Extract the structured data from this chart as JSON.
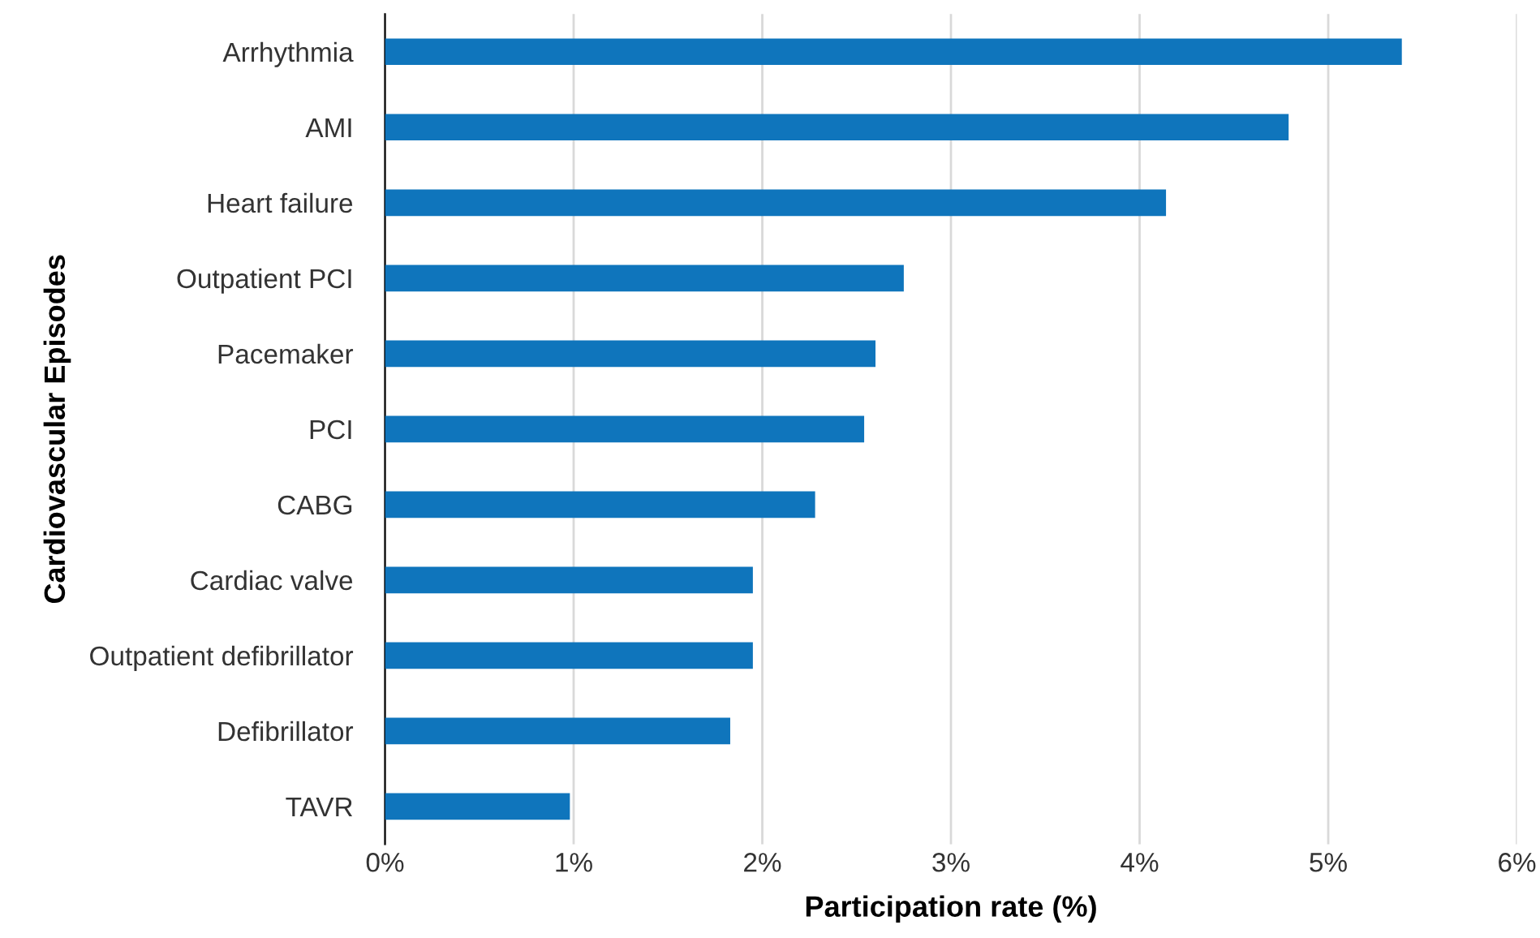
{
  "chart_data": {
    "type": "bar",
    "orientation": "horizontal",
    "xlabel": "Participation rate (%)",
    "ylabel": "Cardiovascular Episodes",
    "categories": [
      "Arrhythmia",
      "AMI",
      "Heart failure",
      "Outpatient PCI",
      "Pacemaker",
      "PCI",
      "CABG",
      "Cardiac valve",
      "Outpatient defibrillator",
      "Defibrillator",
      "TAVR"
    ],
    "values": [
      5.39,
      4.79,
      4.14,
      2.75,
      2.6,
      2.54,
      2.28,
      1.95,
      1.95,
      1.83,
      0.98
    ],
    "color": "#0f75bc",
    "xlim": [
      0,
      6
    ],
    "xticks": [
      {
        "value": 0,
        "label": "0%"
      },
      {
        "value": 1,
        "label": "1%"
      },
      {
        "value": 2,
        "label": "2%"
      },
      {
        "value": 3,
        "label": "3%"
      },
      {
        "value": 4,
        "label": "4%"
      },
      {
        "value": 5,
        "label": "5%"
      },
      {
        "value": 6,
        "label": "6%"
      }
    ],
    "grid": "x"
  }
}
